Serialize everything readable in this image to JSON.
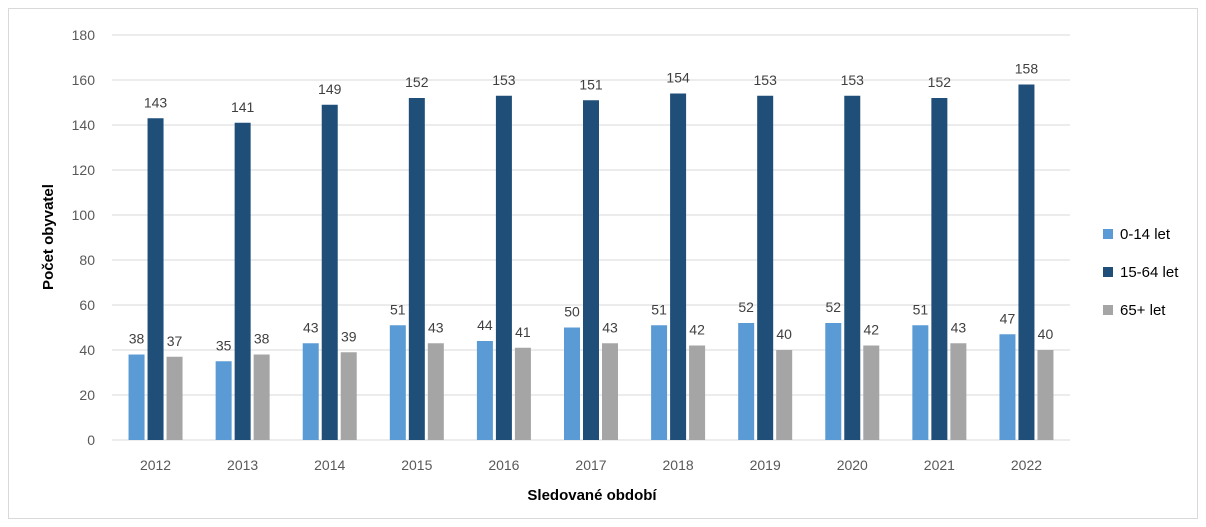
{
  "chart_data": {
    "type": "bar",
    "title": "",
    "xlabel": "Sledované období",
    "ylabel": "Počet obyvatel",
    "ylim": [
      0,
      180
    ],
    "yticks": [
      "0",
      "20",
      "40",
      "60",
      "80",
      "100",
      "120",
      "140",
      "160",
      "180"
    ],
    "grid": true,
    "legend_position": "right",
    "categories": [
      "2012",
      "2013",
      "2014",
      "2015",
      "2016",
      "2017",
      "2018",
      "2019",
      "2020",
      "2021",
      "2022"
    ],
    "series": [
      {
        "name": "0-14 let",
        "color": "#5b9bd5",
        "values": [
          38,
          35,
          43,
          51,
          44,
          50,
          51,
          52,
          52,
          51,
          47
        ]
      },
      {
        "name": "15-64 let",
        "color": "#1f4e79",
        "values": [
          143,
          141,
          149,
          152,
          153,
          151,
          154,
          153,
          153,
          152,
          158
        ]
      },
      {
        "name": "65+ let",
        "color": "#a5a5a5",
        "values": [
          37,
          38,
          39,
          43,
          41,
          43,
          42,
          40,
          42,
          43,
          40
        ]
      }
    ]
  }
}
